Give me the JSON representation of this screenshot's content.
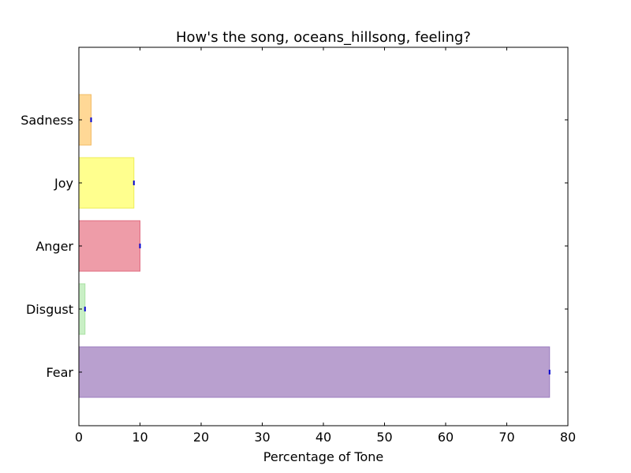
{
  "chart_data": {
    "type": "bar",
    "orientation": "horizontal",
    "title": "How's the song, oceans_hillsong, feeling?",
    "xlabel": "Percentage of Tone",
    "ylabel": "",
    "xlim": [
      0,
      80
    ],
    "ylim": [
      -0.85,
      5.15
    ],
    "x_ticks": [
      0,
      10,
      20,
      30,
      40,
      50,
      60,
      70,
      80
    ],
    "grid": false,
    "legend": "none",
    "categories": [
      "Fear",
      "Disgust",
      "Anger",
      "Joy",
      "Sadness"
    ],
    "values": [
      77,
      1,
      10,
      9,
      2
    ],
    "bar_colors": [
      "#b9a0cf",
      "#c9efc5",
      "#ee9ca8",
      "#ffff8e",
      "#ffd896"
    ],
    "bar_edge_colors": [
      "#9b7cbf",
      "#a9e0a2",
      "#e06c80",
      "#eeee55",
      "#f2bb66"
    ],
    "error_marker_color": "#0000cc"
  }
}
